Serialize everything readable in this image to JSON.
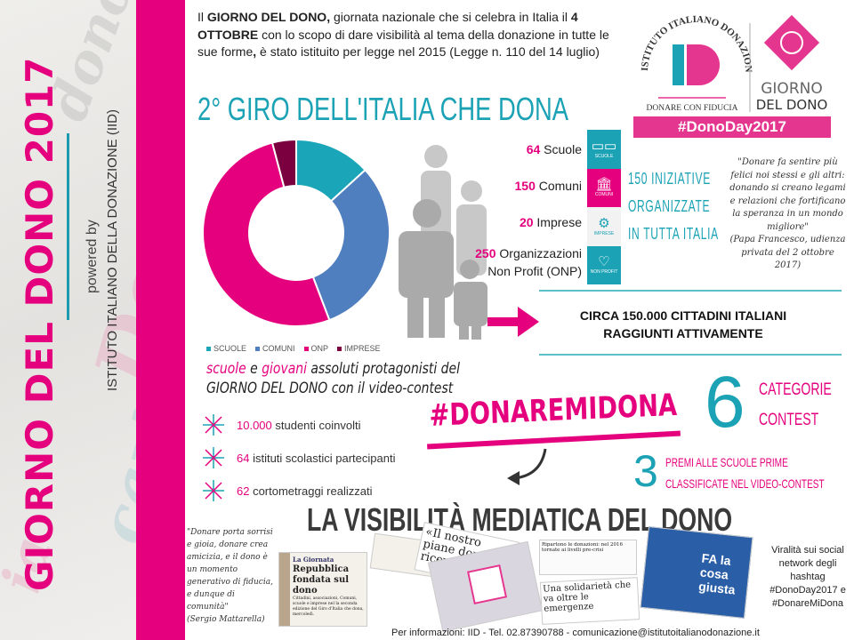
{
  "sidebar": {
    "title": "GIORNO DEL DONO 2017",
    "powered_by": "powered by",
    "institute": "ISTITUTO ITALIANO DELLA DONAZIONE (IID)"
  },
  "intro": {
    "p1": "Il ",
    "b1": "GIORNO DEL DONO,",
    "p2": " giornata nazionale che si celebra in Italia il ",
    "b2": "4 OTTOBRE",
    "p3": " con lo scopo di dare visibilità al tema della donazione in tutte le sue forme",
    "b3": ",",
    "p4": " è stato istituito per legge nel 2015 (Legge n. 110 del 14 luglio)"
  },
  "title": "2° GIRO DELL'ITALIA CHE DONA",
  "logo": {
    "arc_text": "ISTITUTO ITALIANO DONAZIONE",
    "monogram": "ID",
    "tagline": "DONARE CON FIDUCIA",
    "brand_line1": "GIORNO",
    "brand_line2": "DEL DONO",
    "hashtag": "#DonoDay2017"
  },
  "stats": [
    {
      "num": "64",
      "label": " Scuole"
    },
    {
      "num": "150",
      "label": " Comuni"
    },
    {
      "num": "20",
      "label": " Imprese"
    },
    {
      "num": "250",
      "label": " Organizzazioni",
      "label2": "Non Profit (ONP)"
    }
  ],
  "icon_column": [
    {
      "icon": "book-icon",
      "color": "#1ba2b5",
      "caption": "SCUOLE"
    },
    {
      "icon": "building-icon",
      "color": "#e5007e",
      "caption": "COMUNI"
    },
    {
      "icon": "gears-icon",
      "color": "#f2f2f2",
      "caption": "IMPRESE"
    },
    {
      "icon": "heart-icon",
      "color": "#1ba2b5",
      "caption": "NON PROFIT"
    }
  ],
  "initiatives": {
    "line1": "150 INIZIATIVE",
    "line2": "ORGANIZZATE",
    "line3": "IN TUTTA ITALIA"
  },
  "papa_quote": {
    "text": "\"Donare fa sentire più felici noi stessi e gli altri: donando si creano legami e relazioni che fortificano la speranza in un mondo migliore\"",
    "source": "(Papa Francesco, udienza privata del 2 ottobre 2017)"
  },
  "citizens": {
    "line1": "CIRCA 150.000 CITTADINI ITALIANI",
    "line2": "RAGGIUNTI ATTIVAMENTE"
  },
  "chart_data": {
    "type": "pie",
    "donut": true,
    "categories": [
      "SCUOLE",
      "COMUNI",
      "ONP",
      "IMPRESE"
    ],
    "values": [
      64,
      150,
      250,
      20
    ],
    "colors": [
      "#1aa5b8",
      "#4f7fbf",
      "#e5007e",
      "#7a0040"
    ],
    "legend": "bottom"
  },
  "protagonists": {
    "w1": "scuole",
    "w2": " e ",
    "w3": "giovani",
    "w4": " assoluti protagonisti del",
    "line2a": "GIORNO DEL DONO",
    "line2b": " con il video-contest"
  },
  "bullets": [
    {
      "num": "10.000",
      "text": " studenti coinvolti"
    },
    {
      "num": "64",
      "text": " istituti scolastici partecipanti"
    },
    {
      "num": "62",
      "text": " cortometraggi realizzati"
    }
  ],
  "contest": {
    "hashtag": "#DONAREMIDONA",
    "six": "6",
    "cat1": "CATEGORIE",
    "cat2": "CONTEST",
    "three": "3",
    "premi1": "PREMI ALLE SCUOLE PRIME",
    "premi2": "CLASSIFICATE NEL VIDEO-CONTEST"
  },
  "media": {
    "title": "LA VISIBILITÀ MEDIATICA DEL DONO",
    "mattarella_quote": "\"Donare porta sorrisi e gioia, donare crea amicizia, e il dono è un momento generativo di fiducia, e dunque di comunità\"",
    "mattarella_source": "(Sergio Mattarella)",
    "clip1_kicker": "La Giornata",
    "clip1_headline": "Repubblica fondata sul dono",
    "clip1_body": "Cittadini, associazioni, Comuni, scuole e imprese nel la seconda edizione del Giro d'Italia che dona, mercoledì.",
    "clip2_headline": "«Il nostro piane dono ricevu da con",
    "clip3_headline": "Ripartono le donazioni: nel 2016 tornate ai livelli pre-crisi",
    "clip4_headline": "Una solidarietà che va oltre le emergenze",
    "tv_text": "FA la cosa giusta",
    "virality": "Viralità sui social network degli hashtag #DonoDay2017 e #DonareMiDona"
  },
  "footer": "Per informazioni: IID - Tel. 02.87390788 - comunicazione@istitutoitalianodonazione.it"
}
